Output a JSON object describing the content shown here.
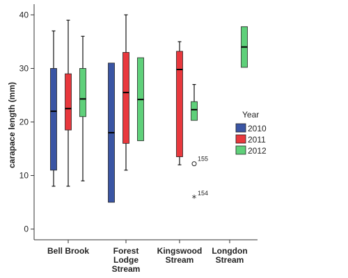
{
  "chart_data": {
    "type": "boxplot",
    "ylabel": "carapace length (mm)",
    "ylim": [
      -2,
      42
    ],
    "yticks": [
      0,
      10,
      20,
      30,
      40
    ],
    "grid": false,
    "legend_placement": "right",
    "categories": [
      {
        "label": [
          "Bell Brook"
        ]
      },
      {
        "label": [
          "Forest",
          "Lodge",
          "Stream"
        ]
      },
      {
        "label": [
          "Kingswood",
          "Stream"
        ]
      },
      {
        "label": [
          "Longdon",
          "Stream"
        ]
      }
    ],
    "legend": {
      "title": "Year",
      "items": [
        {
          "name": "2010",
          "color": "#3a55a4"
        },
        {
          "name": "2011",
          "color": "#e8383d"
        },
        {
          "name": "2012",
          "color": "#5fd07a"
        }
      ]
    },
    "series": [
      {
        "name": "2010",
        "color": "#3a55a4",
        "boxes": [
          {
            "category": 0,
            "min": 8,
            "q1": 11,
            "median": 22,
            "q3": 30,
            "max": 37
          },
          {
            "category": 1,
            "min": 5,
            "q1": 5,
            "median": 18,
            "q3": 31,
            "max": 31
          }
        ]
      },
      {
        "name": "2011",
        "color": "#e8383d",
        "boxes": [
          {
            "category": 0,
            "min": 8,
            "q1": 18.5,
            "median": 22.5,
            "q3": 29,
            "max": 39
          },
          {
            "category": 1,
            "min": 11,
            "q1": 16,
            "median": 25.5,
            "q3": 33,
            "max": 40
          },
          {
            "category": 2,
            "min": 12,
            "q1": 13.5,
            "median": 29.8,
            "q3": 33.2,
            "max": 35
          }
        ]
      },
      {
        "name": "2012",
        "color": "#5fd07a",
        "boxes": [
          {
            "category": 0,
            "min": 9,
            "q1": 21,
            "median": 24.3,
            "q3": 30,
            "max": 36
          },
          {
            "category": 1,
            "min": 16.5,
            "q1": 16.5,
            "median": 24.2,
            "q3": 32,
            "max": 32
          },
          {
            "category": 2,
            "min": 20.3,
            "q1": 20.3,
            "median": 22.3,
            "q3": 23.8,
            "max": 27,
            "outliers": [
              {
                "value": 12.2,
                "marker": "circle",
                "label": "155"
              },
              {
                "value": 5.8,
                "marker": "star",
                "label": "154"
              }
            ]
          },
          {
            "category": 3,
            "min": 30.2,
            "q1": 30.2,
            "median": 34,
            "q3": 37.8,
            "max": 37.8
          }
        ]
      }
    ]
  }
}
